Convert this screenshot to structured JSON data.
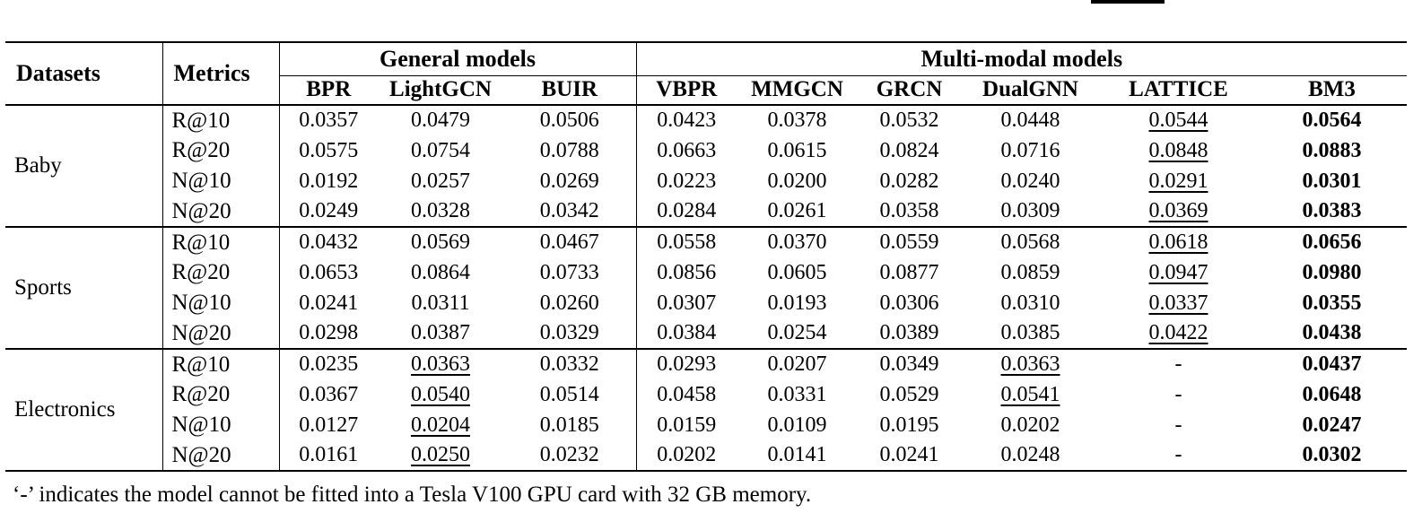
{
  "page": {
    "footnote": "‘-’ indicates the model cannot be fitted into a Tesla V100 GPU card with 32 GB memory."
  },
  "table": {
    "header": {
      "datasets": "Datasets",
      "metrics": "Metrics",
      "groups": [
        {
          "label": "General models",
          "span": 3
        },
        {
          "label": "Multi-modal models",
          "span": 6
        }
      ],
      "models": [
        "BPR",
        "LightGCN",
        "BUIR",
        "VBPR",
        "MMGCN",
        "GRCN",
        "DualGNN",
        "LATTICE",
        "BM3"
      ]
    },
    "groups": [
      {
        "dataset": "Baby",
        "rows": [
          {
            "metric": "R@10",
            "values": [
              "0.0357",
              "0.0479",
              "0.0506",
              "0.0423",
              "0.0378",
              "0.0532",
              "0.0448",
              "0.0544",
              "0.0564"
            ],
            "underline": [
              7
            ],
            "bold": [
              8
            ]
          },
          {
            "metric": "R@20",
            "values": [
              "0.0575",
              "0.0754",
              "0.0788",
              "0.0663",
              "0.0615",
              "0.0824",
              "0.0716",
              "0.0848",
              "0.0883"
            ],
            "underline": [
              7
            ],
            "bold": [
              8
            ]
          },
          {
            "metric": "N@10",
            "values": [
              "0.0192",
              "0.0257",
              "0.0269",
              "0.0223",
              "0.0200",
              "0.0282",
              "0.0240",
              "0.0291",
              "0.0301"
            ],
            "underline": [
              7
            ],
            "bold": [
              8
            ]
          },
          {
            "metric": "N@20",
            "values": [
              "0.0249",
              "0.0328",
              "0.0342",
              "0.0284",
              "0.0261",
              "0.0358",
              "0.0309",
              "0.0369",
              "0.0383"
            ],
            "underline": [
              7
            ],
            "bold": [
              8
            ]
          }
        ]
      },
      {
        "dataset": "Sports",
        "rows": [
          {
            "metric": "R@10",
            "values": [
              "0.0432",
              "0.0569",
              "0.0467",
              "0.0558",
              "0.0370",
              "0.0559",
              "0.0568",
              "0.0618",
              "0.0656"
            ],
            "underline": [
              7
            ],
            "bold": [
              8
            ]
          },
          {
            "metric": "R@20",
            "values": [
              "0.0653",
              "0.0864",
              "0.0733",
              "0.0856",
              "0.0605",
              "0.0877",
              "0.0859",
              "0.0947",
              "0.0980"
            ],
            "underline": [
              7
            ],
            "bold": [
              8
            ]
          },
          {
            "metric": "N@10",
            "values": [
              "0.0241",
              "0.0311",
              "0.0260",
              "0.0307",
              "0.0193",
              "0.0306",
              "0.0310",
              "0.0337",
              "0.0355"
            ],
            "underline": [
              7
            ],
            "bold": [
              8
            ]
          },
          {
            "metric": "N@20",
            "values": [
              "0.0298",
              "0.0387",
              "0.0329",
              "0.0384",
              "0.0254",
              "0.0389",
              "0.0385",
              "0.0422",
              "0.0438"
            ],
            "underline": [
              7
            ],
            "bold": [
              8
            ]
          }
        ]
      },
      {
        "dataset": "Electronics",
        "rows": [
          {
            "metric": "R@10",
            "values": [
              "0.0235",
              "0.0363",
              "0.0332",
              "0.0293",
              "0.0207",
              "0.0349",
              "0.0363",
              "-",
              "0.0437"
            ],
            "underline": [
              1,
              6
            ],
            "bold": [
              8
            ]
          },
          {
            "metric": "R@20",
            "values": [
              "0.0367",
              "0.0540",
              "0.0514",
              "0.0458",
              "0.0331",
              "0.0529",
              "0.0541",
              "-",
              "0.0648"
            ],
            "underline": [
              1,
              6
            ],
            "bold": [
              8
            ]
          },
          {
            "metric": "N@10",
            "values": [
              "0.0127",
              "0.0204",
              "0.0185",
              "0.0159",
              "0.0109",
              "0.0195",
              "0.0202",
              "-",
              "0.0247"
            ],
            "underline": [
              1
            ],
            "bold": [
              8
            ]
          },
          {
            "metric": "N@20",
            "values": [
              "0.0161",
              "0.0250",
              "0.0232",
              "0.0202",
              "0.0141",
              "0.0241",
              "0.0248",
              "-",
              "0.0302"
            ],
            "underline": [
              1
            ],
            "bold": [
              8
            ]
          }
        ]
      }
    ]
  }
}
